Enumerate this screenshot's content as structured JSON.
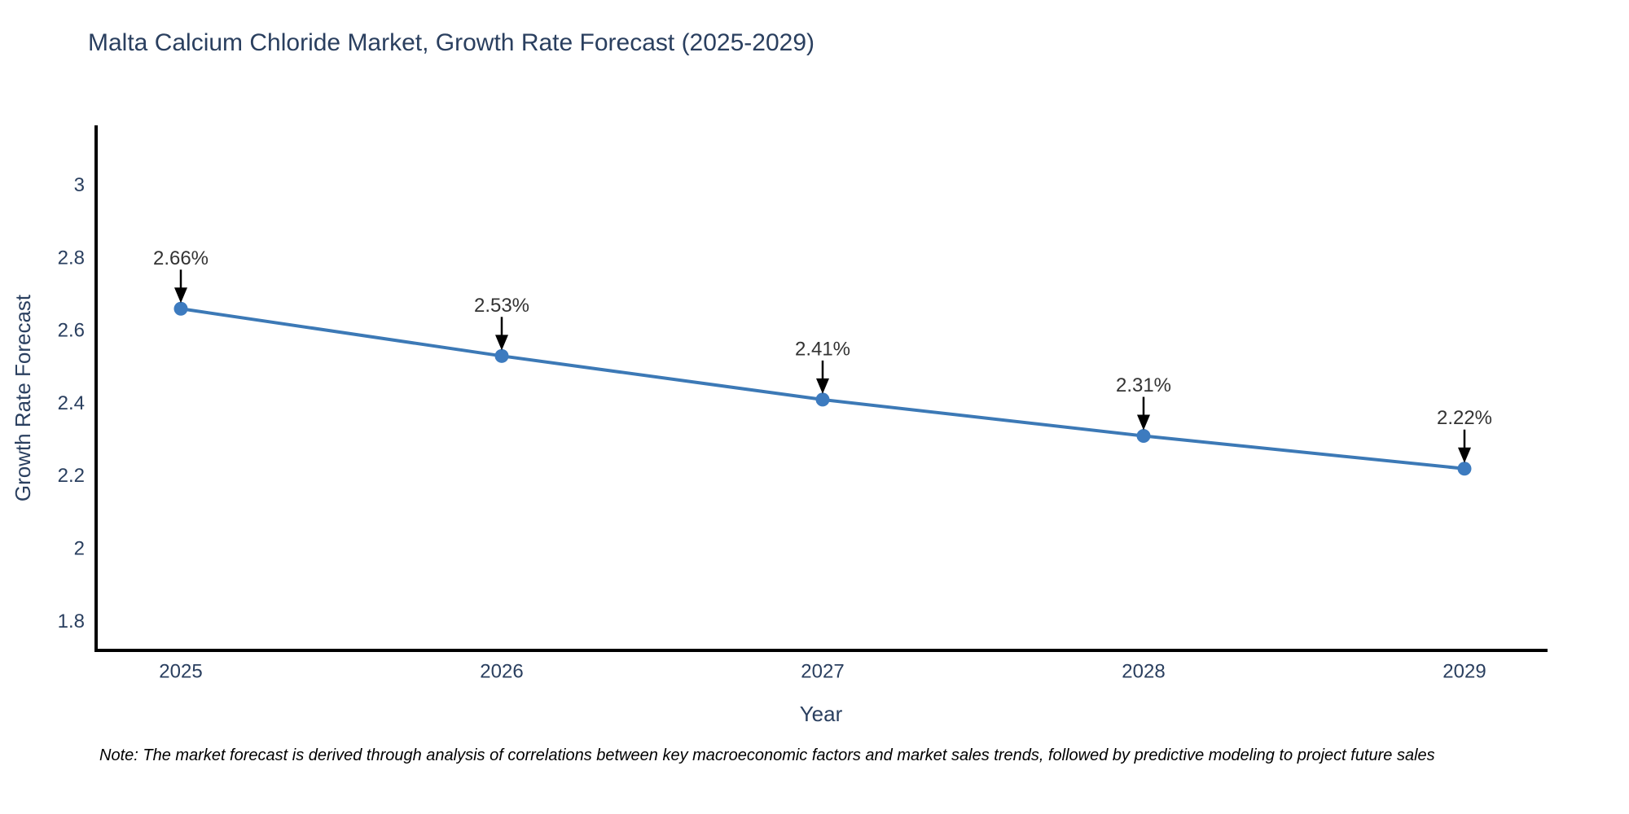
{
  "title": "Malta Calcium Chloride Market, Growth Rate Forecast (2025-2029)",
  "note": "Note: The market forecast is derived through analysis of correlations between key macroeconomic factors and market sales trends, followed by predictive modeling to project future sales",
  "chart_data": {
    "type": "line",
    "title": "Malta Calcium Chloride Market, Growth Rate Forecast (2025-2029)",
    "x": [
      "2025",
      "2026",
      "2027",
      "2028",
      "2029"
    ],
    "y": [
      2.66,
      2.53,
      2.41,
      2.31,
      2.22
    ],
    "point_labels": [
      "2.66%",
      "2.53%",
      "2.41%",
      "2.31%",
      "2.22%"
    ],
    "xlabel": "Year",
    "ylabel": "Growth Rate Forecast",
    "ytick_labels": [
      "1.8",
      "2",
      "2.2",
      "2.4",
      "2.6",
      "2.8",
      "3"
    ],
    "yticks": [
      1.8,
      2,
      2.2,
      2.4,
      2.6,
      2.8,
      3
    ],
    "ylim": [
      1.72,
      3.16
    ],
    "grid": false,
    "legend": "none",
    "line_color": "#3c79b6",
    "marker_color": "#3d7bbf",
    "axis_color": "#000000",
    "annotation_color": "#333333",
    "annotation_arrow_color": "#000000",
    "tick_color": "#2a3f5f",
    "title_color": "#2a3f5f",
    "background_color": "#ffffff"
  }
}
